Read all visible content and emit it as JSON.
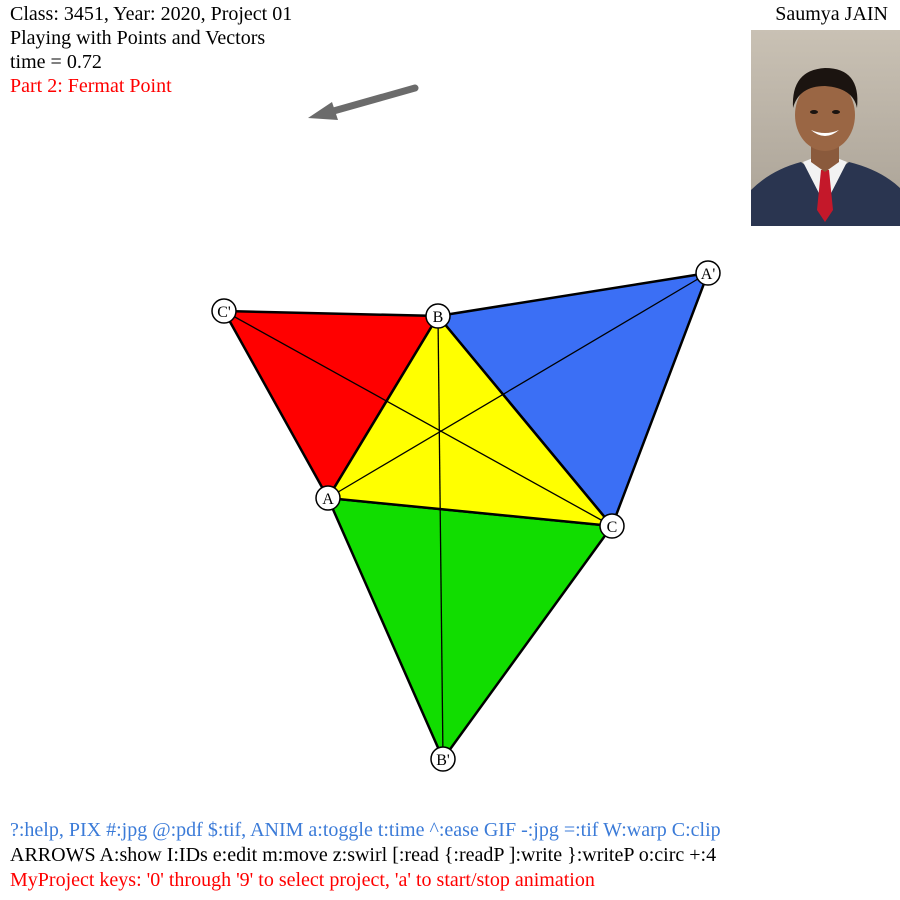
{
  "header": {
    "line1": "Class: 3451, Year: 2020, Project 01",
    "line2": "Playing with Points and Vectors",
    "line3": "time = 0.72",
    "line4": "Part 2: Fermat Point"
  },
  "author": {
    "name": "Saumya JAIN"
  },
  "diagram": {
    "points": {
      "A": "A",
      "B": "B",
      "C": "C",
      "A_prime": "A'",
      "B_prime": "B'",
      "C_prime": "C'"
    },
    "colors": {
      "inner_triangle": "#ffff00",
      "triangle_A_prime": "#3b6ff5",
      "triangle_B_prime": "#11dd00",
      "triangle_C_prime": "#ff0000",
      "arrow": "#6b6b6b"
    }
  },
  "footer": {
    "line1": "?:help, PIX #:jpg @:pdf $:tif, ANIM a:toggle t:time ^:ease GIF -:jpg =:tif W:warp C:clip",
    "line2": "ARROWS A:show I:IDs e:edit m:move z:swirl [:read {:readP ]:write }:writeP o:circ +:4",
    "line3": "MyProject keys: '0' through '9' to select project, 'a' to start/stop animation"
  }
}
